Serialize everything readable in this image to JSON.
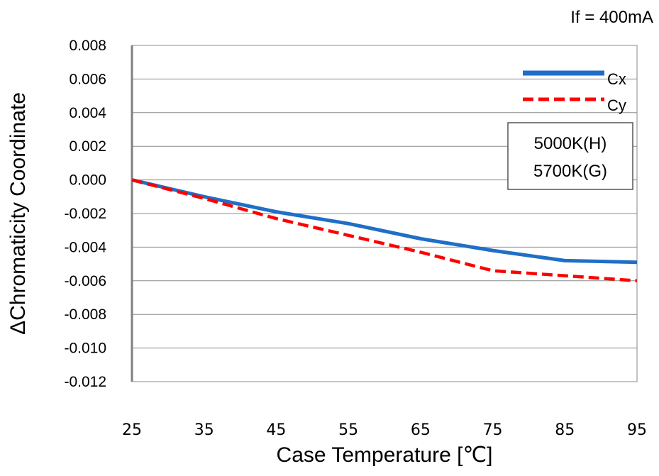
{
  "chart_data": {
    "type": "line",
    "annotation": "If = 400mA",
    "xlabel": "Case Temperature [℃]",
    "ylabel": "ΔChromaticity Coordinate",
    "x": [
      25,
      35,
      45,
      55,
      65,
      75,
      85,
      95
    ],
    "xlim": [
      25,
      95
    ],
    "ylim": [
      -0.012,
      0.008
    ],
    "y_ticks": [
      "0.008",
      "0.006",
      "0.004",
      "0.002",
      "0.000",
      "-0.002",
      "-0.004",
      "-0.006",
      "-0.008",
      "-0.010",
      "-0.012"
    ],
    "x_ticks": [
      "25",
      "35",
      "45",
      "55",
      "65",
      "75",
      "85",
      "95"
    ],
    "grid": true,
    "legend_position": "top-right",
    "text_box": [
      "5000K(H)",
      "5700K(G)"
    ],
    "series": [
      {
        "name": "Cx",
        "color": "#1f6fc6",
        "style": "solid",
        "values": [
          0.0,
          -0.001,
          -0.0019,
          -0.0026,
          -0.0035,
          -0.0042,
          -0.0048,
          -0.0049
        ]
      },
      {
        "name": "Cy",
        "color": "#ff0000",
        "style": "dashed",
        "values": [
          0.0,
          -0.0011,
          -0.0023,
          -0.0033,
          -0.0043,
          -0.0054,
          -0.0057,
          -0.006
        ]
      }
    ]
  }
}
